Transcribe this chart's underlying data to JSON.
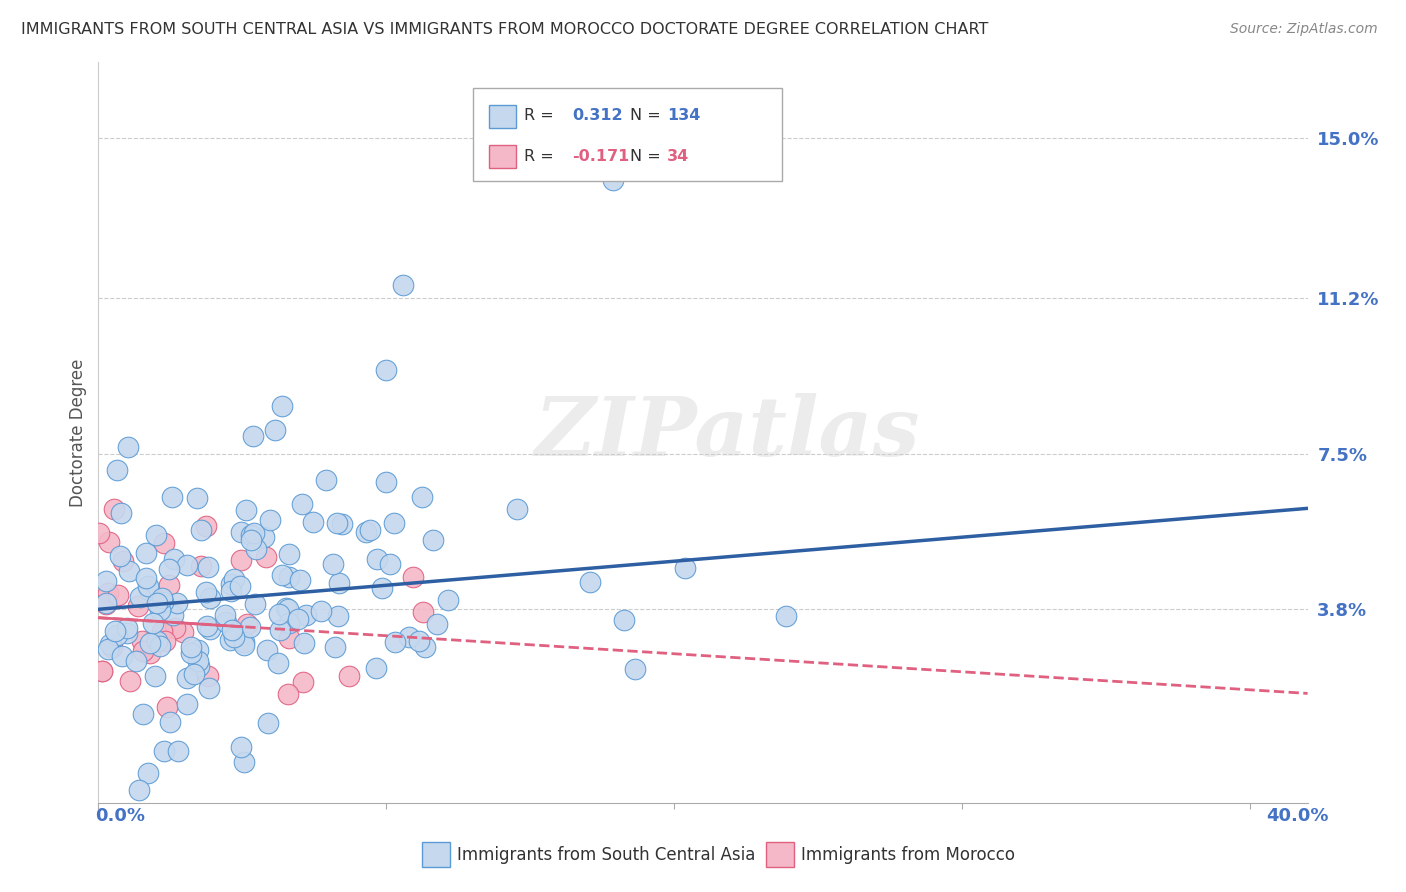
{
  "title": "IMMIGRANTS FROM SOUTH CENTRAL ASIA VS IMMIGRANTS FROM MOROCCO DOCTORATE DEGREE CORRELATION CHART",
  "source": "Source: ZipAtlas.com",
  "ylabel": "Doctorate Degree",
  "xlim": [
    0.0,
    0.42
  ],
  "ylim": [
    -0.008,
    0.168
  ],
  "ytick_vals": [
    0.038,
    0.075,
    0.112,
    0.15
  ],
  "ytick_labels": [
    "3.8%",
    "7.5%",
    "11.2%",
    "15.0%"
  ],
  "legend1_R": "0.312",
  "legend1_N": "134",
  "legend2_R": "-0.171",
  "legend2_N": "34",
  "blue_color": "#c5d8ee",
  "blue_edge_color": "#5b9bd5",
  "pink_color": "#f4b8c8",
  "pink_edge_color": "#e06080",
  "blue_line_color": "#2e5fa3",
  "pink_line_color": "#e06080",
  "axis_label_color": "#4472c4",
  "watermark": "ZIPatlas",
  "blue_trend_x": [
    0.0,
    0.42
  ],
  "blue_trend_y": [
    0.038,
    0.062
  ],
  "pink_trend_x": [
    0.0,
    0.42
  ],
  "pink_trend_y": [
    0.036,
    0.018
  ]
}
